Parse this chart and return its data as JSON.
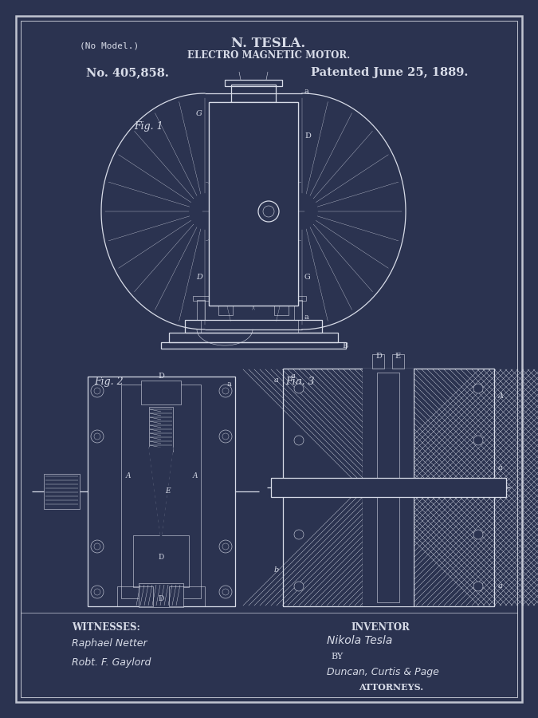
{
  "bg_color": "#2b3350",
  "border_color": "#c0c4d0",
  "text_color": "#d8dce8",
  "title1": "N. TESLA.",
  "title2": "ELECTRO MAGNETIC MOTOR.",
  "patent_no": "No. 405,858.",
  "patent_date": "Patented June 25, 1889.",
  "no_model": "(No Model.)",
  "fig1_label": "Fig. 1",
  "fig2_label": "Fig. 2",
  "fig3_label": "Fig. 3",
  "witnesses_label": "WITNESSES:",
  "inventor_label": "INVENTOR",
  "witness1": "Raphael Netter",
  "witness2": "Robt. F. Gaylord",
  "inventor_name": "Nikola Tesla",
  "attorneys_by": "BY",
  "attorneys_firm": "Duncan, Curtis & Page",
  "attorneys_label": "ATTORNEYS."
}
